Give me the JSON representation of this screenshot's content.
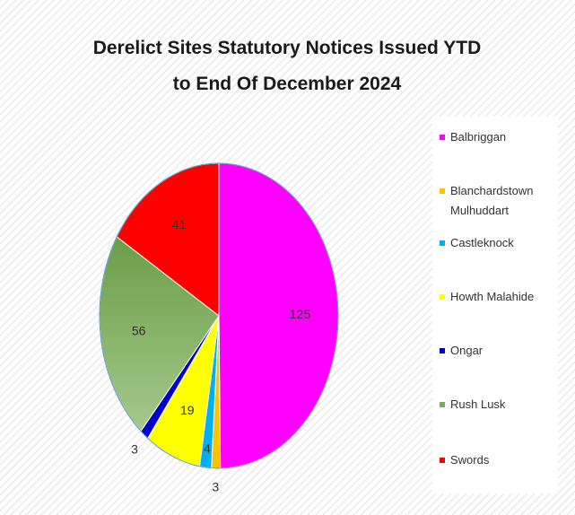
{
  "chart_data": {
    "type": "pie",
    "title": "Derelict Sites Statutory Notices Issued YTD to End Of December 2024",
    "categories": [
      "Balbriggan",
      "Blanchardstown Mulhuddart",
      "Castleknock",
      "Howth Malahide",
      "Ongar",
      "Rush Lusk",
      "Swords"
    ],
    "values": [
      125,
      3,
      4,
      19,
      3,
      56,
      41
    ],
    "colors": [
      "#ff00ff",
      "#ffc000",
      "#00b0f0",
      "#ffff00",
      "#0000cc",
      "#7aab58",
      "#ff0000"
    ],
    "legend": "right"
  }
}
